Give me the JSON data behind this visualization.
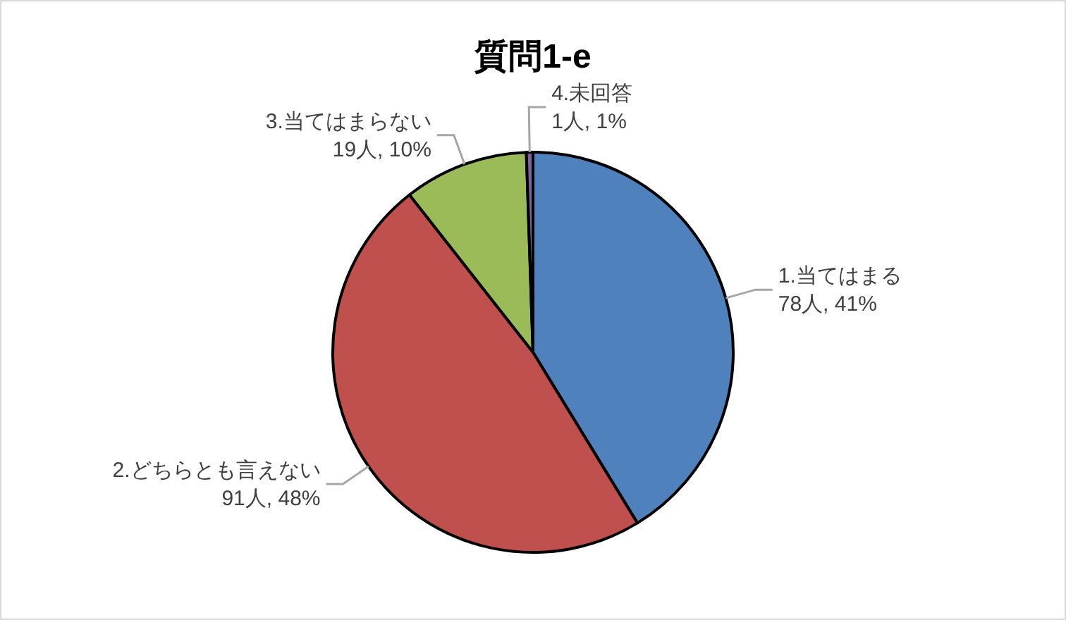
{
  "chart_data": {
    "type": "pie",
    "title": "質問1-e",
    "categories": [
      "1.当てはまる",
      "2.どちらとも言えない",
      "3.当てはまらない",
      "4.未回答"
    ],
    "values": [
      78,
      91,
      19,
      1
    ],
    "value_labels": [
      "78人, 41%",
      "91人, 48%",
      "19人, 10%",
      "1人, 1%"
    ],
    "colors": [
      "#4f81bd",
      "#c0504d",
      "#9bbb59",
      "#8064a2"
    ]
  }
}
